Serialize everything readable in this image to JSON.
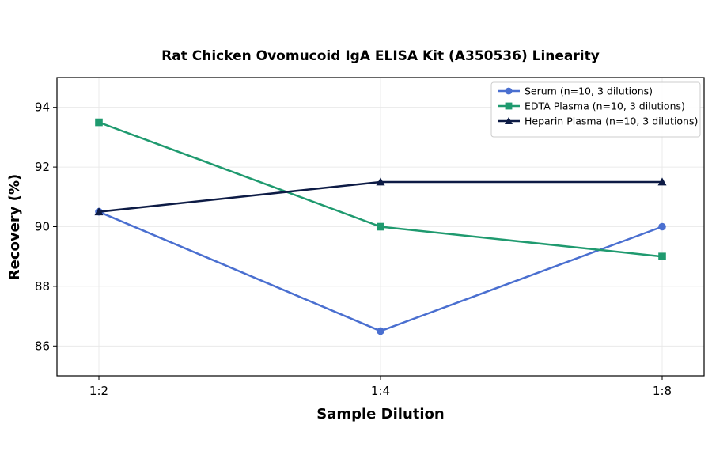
{
  "chart_data": {
    "type": "line",
    "title": "Rat Chicken Ovomucoid IgA ELISA Kit (A350536) Linearity",
    "xlabel": "Sample Dilution",
    "ylabel": "Recovery (%)",
    "categories": [
      "1:2",
      "1:4",
      "1:8"
    ],
    "ylim": [
      85,
      95
    ],
    "yticks": [
      86,
      88,
      90,
      92,
      94
    ],
    "grid": true,
    "legend_position": "top-right",
    "series": [
      {
        "name": "Serum (n=10, 3 dilutions)",
        "values": [
          90.5,
          86.5,
          90.0
        ],
        "color": "#4a6fd0",
        "marker": "circle"
      },
      {
        "name": "EDTA Plasma (n=10, 3 dilutions)",
        "values": [
          93.5,
          90.0,
          89.0
        ],
        "color": "#1f9a6f",
        "marker": "square"
      },
      {
        "name": "Heparin Plasma (n=10, 3 dilutions)",
        "values": [
          90.5,
          91.5,
          91.5
        ],
        "color": "#0d1b45",
        "marker": "triangle"
      }
    ]
  }
}
